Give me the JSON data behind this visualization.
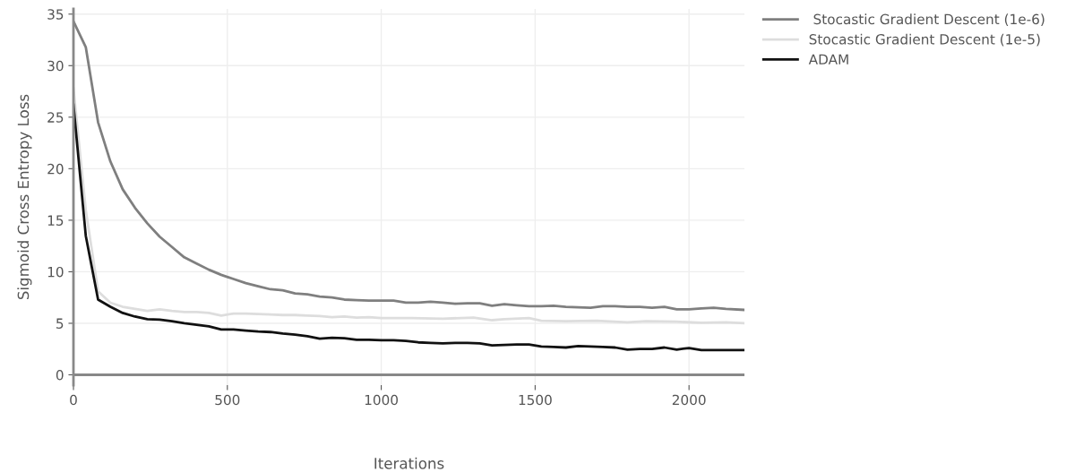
{
  "chart_data": {
    "type": "line",
    "xlabel": "Iterations",
    "ylabel": "Sigmoid Cross Entropy Loss",
    "xlim": [
      0,
      2180
    ],
    "xticks": [
      0,
      500,
      1000,
      1500,
      2000
    ],
    "ylim": [
      -1,
      35.5
    ],
    "yticks": [
      0,
      5,
      10,
      15,
      20,
      25,
      30,
      35
    ],
    "grid": true,
    "legend": "top right",
    "series": [
      {
        "name": " Stocastic Gradient Descent (1e-6)",
        "color": "#7f7f7f",
        "x": [
          0,
          40,
          80,
          120,
          160,
          200,
          240,
          280,
          320,
          360,
          400,
          440,
          480,
          520,
          560,
          600,
          640,
          680,
          720,
          760,
          800,
          840,
          880,
          920,
          960,
          1000,
          1040,
          1080,
          1120,
          1160,
          1200,
          1240,
          1280,
          1320,
          1360,
          1400,
          1440,
          1480,
          1520,
          1560,
          1600,
          1640,
          1680,
          1720,
          1760,
          1800,
          1840,
          1880,
          1920,
          1960,
          2000,
          2040,
          2080,
          2120,
          2180
        ],
        "values": [
          34.3,
          31.8,
          24.5,
          20.7,
          18.0,
          16.2,
          14.7,
          13.4,
          12.4,
          11.4,
          10.8,
          10.2,
          9.7,
          9.3,
          8.9,
          8.6,
          8.3,
          8.2,
          7.9,
          7.8,
          7.6,
          7.5,
          7.3,
          7.25,
          7.2,
          7.2,
          7.2,
          7.0,
          7.0,
          7.1,
          7.0,
          6.9,
          6.95,
          6.95,
          6.7,
          6.85,
          6.75,
          6.65,
          6.65,
          6.7,
          6.6,
          6.55,
          6.5,
          6.65,
          6.65,
          6.6,
          6.6,
          6.5,
          6.6,
          6.35,
          6.35,
          6.45,
          6.5,
          6.4,
          6.3
        ]
      },
      {
        "name": "Stocastic Gradient Descent (1e-5)",
        "color": "#dddddd",
        "x": [
          0,
          40,
          80,
          120,
          160,
          200,
          240,
          280,
          320,
          360,
          400,
          440,
          480,
          520,
          560,
          600,
          640,
          680,
          720,
          760,
          800,
          840,
          880,
          920,
          960,
          1000,
          1100,
          1200,
          1300,
          1360,
          1400,
          1480,
          1520,
          1600,
          1700,
          1800,
          1860,
          1960,
          2040,
          2120,
          2180
        ],
        "values": [
          27.8,
          16,
          8.1,
          7.0,
          6.6,
          6.4,
          6.2,
          6.35,
          6.2,
          6.1,
          6.1,
          6.0,
          5.75,
          5.95,
          5.95,
          5.9,
          5.85,
          5.8,
          5.8,
          5.75,
          5.7,
          5.6,
          5.65,
          5.55,
          5.6,
          5.5,
          5.5,
          5.45,
          5.55,
          5.3,
          5.4,
          5.5,
          5.25,
          5.2,
          5.25,
          5.1,
          5.2,
          5.15,
          5.05,
          5.1,
          5.0
        ]
      },
      {
        "name": "ADAM",
        "color": "#111111",
        "x": [
          0,
          40,
          80,
          120,
          160,
          200,
          240,
          280,
          320,
          360,
          400,
          440,
          480,
          520,
          560,
          600,
          640,
          680,
          720,
          760,
          800,
          840,
          880,
          920,
          960,
          1000,
          1040,
          1080,
          1120,
          1160,
          1200,
          1240,
          1280,
          1320,
          1360,
          1400,
          1440,
          1480,
          1520,
          1560,
          1600,
          1640,
          1680,
          1720,
          1760,
          1800,
          1840,
          1880,
          1920,
          1960,
          2000,
          2040,
          2080,
          2120,
          2180
        ],
        "values": [
          26.2,
          13.5,
          7.3,
          6.6,
          6.0,
          5.65,
          5.4,
          5.35,
          5.2,
          5.0,
          4.85,
          4.7,
          4.4,
          4.4,
          4.3,
          4.2,
          4.15,
          4.0,
          3.9,
          3.75,
          3.5,
          3.6,
          3.55,
          3.4,
          3.4,
          3.35,
          3.35,
          3.3,
          3.15,
          3.1,
          3.05,
          3.1,
          3.1,
          3.05,
          2.85,
          2.9,
          2.95,
          2.95,
          2.75,
          2.7,
          2.65,
          2.8,
          2.75,
          2.7,
          2.65,
          2.45,
          2.5,
          2.5,
          2.65,
          2.45,
          2.6,
          2.4,
          2.4,
          2.4,
          2.4
        ]
      }
    ]
  }
}
